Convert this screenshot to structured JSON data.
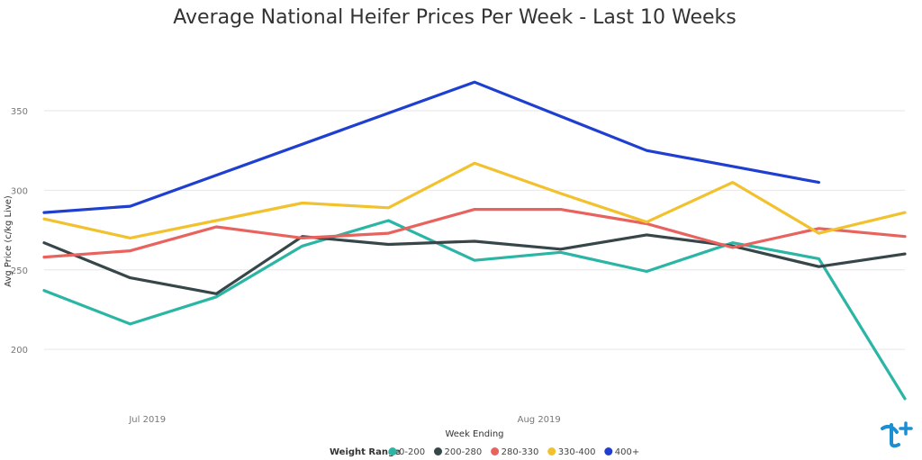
{
  "chart_data": {
    "type": "line",
    "title": "Average National Heifer Prices Per Week - Last 10 Weeks",
    "xlabel": "Week Ending",
    "ylabel": "Avg Price (c/kg Live)",
    "x_tick_labels": [
      "Jul 2019",
      "Aug 2019"
    ],
    "y_ticks": [
      200,
      250,
      300,
      350
    ],
    "ylim": [
      165,
      380
    ],
    "grid": true,
    "legend_title": "Weight Range",
    "legend_position": "bottom",
    "series": [
      {
        "name": "0-200",
        "color": "#2ab5a5",
        "values": [
          237,
          216,
          233,
          265,
          281,
          256,
          261,
          249,
          267,
          257,
          169
        ]
      },
      {
        "name": "200-280",
        "color": "#374649",
        "values": [
          267,
          245,
          235,
          271,
          266,
          268,
          263,
          272,
          265,
          252,
          260
        ]
      },
      {
        "name": "280-330",
        "color": "#e8625e",
        "values": [
          258,
          262,
          277,
          270,
          273,
          288,
          288,
          279,
          264,
          276,
          271
        ]
      },
      {
        "name": "330-400",
        "color": "#f2c12e",
        "values": [
          282,
          270,
          281,
          292,
          289,
          317,
          298,
          280,
          305,
          273,
          286
        ]
      },
      {
        "name": "400+",
        "color": "#1e3fcf",
        "values": [
          286,
          290,
          null,
          null,
          null,
          368,
          null,
          325,
          null,
          305,
          null
        ]
      }
    ]
  },
  "logo": {
    "name": "brand-logo-icon",
    "color": "#1b8fd2"
  }
}
